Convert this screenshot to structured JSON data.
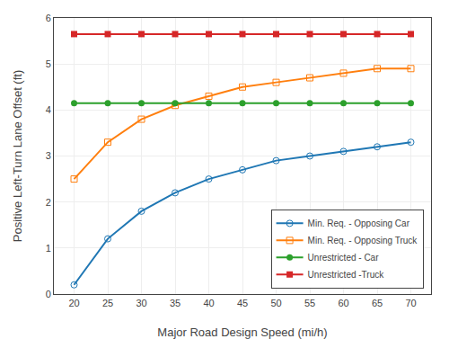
{
  "chart_data": {
    "type": "line",
    "x": [
      20,
      25,
      30,
      35,
      40,
      45,
      50,
      55,
      60,
      65,
      70
    ],
    "series": [
      {
        "name": "Min. Req. - Opposing Car",
        "marker": "circle-open",
        "values": [
          0.2,
          1.2,
          1.8,
          2.2,
          2.5,
          2.7,
          2.9,
          3.0,
          3.1,
          3.2,
          3.3
        ]
      },
      {
        "name": "Min. Req. - Opposing Truck",
        "marker": "square-open",
        "values": [
          2.5,
          3.3,
          3.8,
          4.1,
          4.3,
          4.5,
          4.6,
          4.7,
          4.8,
          4.9,
          4.9
        ]
      },
      {
        "name": "Unrestricted - Car",
        "marker": "circle",
        "values": [
          4.15,
          4.15,
          4.15,
          4.15,
          4.15,
          4.15,
          4.15,
          4.15,
          4.15,
          4.15,
          4.15
        ]
      },
      {
        "name": "Unrestricted -Truck",
        "marker": "square",
        "values": [
          5.65,
          5.65,
          5.65,
          5.65,
          5.65,
          5.65,
          5.65,
          5.65,
          5.65,
          5.65,
          5.65
        ]
      }
    ],
    "xlabel": "Major Road Design Speed (mi/h)",
    "ylabel": "Positive Left-Turn Lane Offset (ft)",
    "xlim": [
      17,
      73
    ],
    "ylim": [
      0,
      6
    ],
    "xticks": [
      20,
      25,
      30,
      35,
      40,
      45,
      50,
      55,
      60,
      65,
      70
    ],
    "yticks": [
      0,
      1,
      2,
      3,
      4,
      5,
      6
    ],
    "grid": true,
    "legend": "lower right"
  }
}
